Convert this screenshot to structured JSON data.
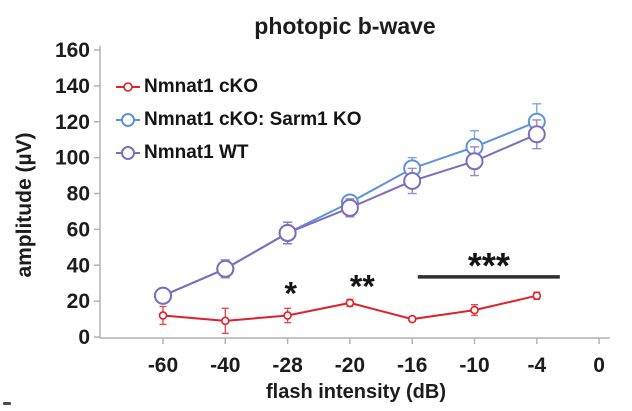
{
  "chart_data": {
    "type": "line",
    "title": "photopic b-wave",
    "xlabel": "flash intensity (dB)",
    "ylabel": "amplitude (µV)",
    "x_tick_labels": [
      "-60",
      "-40",
      "-28",
      "-20",
      "-16",
      "-10",
      "-4",
      "0"
    ],
    "y_ticks": [
      0,
      20,
      40,
      60,
      80,
      100,
      120,
      140,
      160
    ],
    "ylim": [
      0,
      160
    ],
    "grid": false,
    "legend_position": "upper-left-inside",
    "axis_color": "#b2b2b2",
    "text_color": "#1c1c1c",
    "series": [
      {
        "name": "Nmnat1 cKO",
        "color": "#e02028",
        "marker": "open-circle-small",
        "x": [
          -60,
          -40,
          -28,
          -20,
          -16,
          -10,
          -4
        ],
        "values": [
          12,
          9,
          12,
          19,
          10,
          15,
          23
        ],
        "errors": [
          5,
          7,
          4,
          2,
          1,
          3,
          2
        ]
      },
      {
        "name": "Nmnat1 cKO: Sarm1 KO",
        "color": "#5f92d6",
        "marker": "open-circle-large",
        "x": [
          -60,
          -40,
          -28,
          -20,
          -16,
          -10,
          -4
        ],
        "values": [
          23,
          38,
          58,
          75,
          94,
          106,
          120
        ],
        "errors": [
          3,
          4,
          6,
          4,
          6,
          9,
          10
        ]
      },
      {
        "name": "Nmnat1 WT",
        "color": "#7e6dbd",
        "marker": "open-circle-large",
        "x": [
          -60,
          -40,
          -28,
          -20,
          -16,
          -10,
          -4
        ],
        "values": [
          23,
          38,
          58,
          72,
          87,
          98,
          113
        ],
        "errors": [
          3,
          5,
          6,
          5,
          7,
          8,
          8
        ]
      }
    ],
    "annotations": [
      {
        "label": "*",
        "xi": 2.05,
        "y": 27,
        "font_size": 32
      },
      {
        "label": "**",
        "xi": 3.2,
        "y": 31,
        "font_size": 32
      },
      {
        "label": "***",
        "xi": 5.23,
        "y": 43,
        "font_size": 36
      }
    ],
    "significance_bar": {
      "xi_from": 4.09,
      "xi_to": 6.37,
      "y": 33.5,
      "color": "#2f2f2f"
    }
  }
}
